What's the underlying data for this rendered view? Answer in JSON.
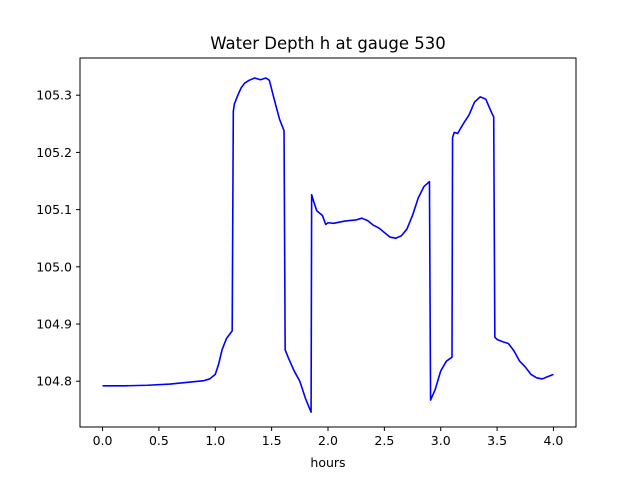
{
  "chart_data": {
    "type": "line",
    "title": "Water Depth h at gauge 530",
    "xlabel": "hours",
    "ylabel": "",
    "xlim": [
      -0.2,
      4.2
    ],
    "ylim": [
      104.72,
      105.365
    ],
    "xticks": [
      0.0,
      0.5,
      1.0,
      1.5,
      2.0,
      2.5,
      3.0,
      3.5,
      4.0
    ],
    "xtick_labels": [
      "0.0",
      "0.5",
      "1.0",
      "1.5",
      "2.0",
      "2.5",
      "3.0",
      "3.5",
      "4.0"
    ],
    "yticks": [
      104.8,
      104.9,
      105.0,
      105.1,
      105.2,
      105.3
    ],
    "ytick_labels": [
      "104.8",
      "104.9",
      "105.0",
      "105.1",
      "105.2",
      "105.3"
    ],
    "grid": false,
    "series": [
      {
        "color": "#0000ff",
        "x": [
          0.0,
          0.2,
          0.4,
          0.6,
          0.8,
          0.9,
          0.95,
          1.0,
          1.03,
          1.06,
          1.1,
          1.15,
          1.16,
          1.17,
          1.2,
          1.23,
          1.26,
          1.3,
          1.35,
          1.4,
          1.45,
          1.48,
          1.52,
          1.57,
          1.61,
          1.62,
          1.65,
          1.7,
          1.75,
          1.8,
          1.85,
          1.855,
          1.87,
          1.9,
          1.95,
          1.98,
          2.0,
          2.05,
          2.1,
          2.15,
          2.2,
          2.25,
          2.3,
          2.35,
          2.4,
          2.45,
          2.5,
          2.55,
          2.6,
          2.65,
          2.7,
          2.75,
          2.8,
          2.85,
          2.9,
          2.91,
          2.95,
          3.0,
          3.05,
          3.1,
          3.105,
          3.12,
          3.15,
          3.2,
          3.25,
          3.3,
          3.35,
          3.4,
          3.45,
          3.47,
          3.48,
          3.5,
          3.55,
          3.6,
          3.65,
          3.7,
          3.75,
          3.8,
          3.85,
          3.9,
          3.95,
          4.0
        ],
        "y": [
          104.792,
          104.792,
          104.793,
          104.795,
          104.799,
          104.801,
          104.804,
          104.812,
          104.83,
          104.855,
          104.875,
          104.888,
          105.272,
          105.285,
          105.3,
          105.313,
          105.321,
          105.326,
          105.33,
          105.327,
          105.33,
          105.326,
          105.295,
          105.258,
          105.238,
          104.855,
          104.84,
          104.818,
          104.8,
          104.77,
          104.746,
          105.126,
          105.116,
          105.098,
          105.09,
          105.074,
          105.077,
          105.076,
          105.078,
          105.08,
          105.081,
          105.082,
          105.085,
          105.081,
          105.073,
          105.068,
          105.06,
          105.052,
          105.05,
          105.054,
          105.066,
          105.09,
          105.12,
          105.14,
          105.149,
          104.767,
          104.785,
          104.818,
          104.835,
          104.842,
          105.226,
          105.235,
          105.233,
          105.25,
          105.265,
          105.288,
          105.297,
          105.293,
          105.27,
          105.262,
          104.877,
          104.873,
          104.869,
          104.866,
          104.853,
          104.835,
          104.825,
          104.812,
          104.806,
          104.804,
          104.808,
          104.812
        ]
      }
    ]
  }
}
